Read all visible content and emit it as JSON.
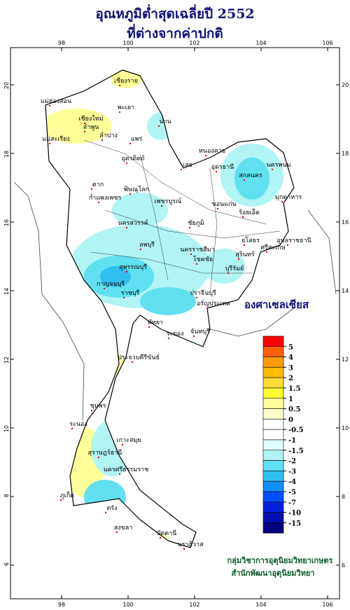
{
  "header": {
    "title_lines": [
      "อุณหภูมิต่ำสุดเฉลี่ยปี  2552",
      "ที่ต่างจากค่าปกติ"
    ]
  },
  "map": {
    "longitude_ticks": [
      98,
      100,
      102,
      104,
      106
    ],
    "latitude_ticks": [
      20,
      18,
      16,
      14,
      12,
      10,
      8,
      6
    ],
    "place_labels": [
      "เชียงราย",
      "แม่ฮ่องสอน",
      "พะเยา",
      "เชียงใหม่",
      "ลำพูน",
      "น่าน",
      "ลำปาง",
      "แพร่",
      "แม่สะเรียง",
      "อุตรดิตถ์",
      "หนองคาย",
      "อุดรธานี",
      "สกลนคร",
      "นครพนม",
      "เลย",
      "ตาก",
      "พิษณุโลก",
      "กำแพงเพชร",
      "เพชรบูรณ์",
      "ขอนแก่น",
      "มุกดาหาร",
      "ร้อยเอ็ด",
      "นครสวรรค์",
      "ชัยภูมิ",
      "ลพบุรี",
      "ยโสธร",
      "อุบลราชธานี",
      "ศรีสะเกษ",
      "สุรินทร์",
      "นครราชสีมา",
      "โชคชัย",
      "บุรีรัมย์",
      "สุพรรณบุรี",
      "กาญจนบุรี",
      "ราชบุรี",
      "ปราจีนบุรี",
      "อรัญประเทศ",
      "พัทยา",
      "ระยอง",
      "จันทบุรี",
      "ประจวบคีรีขันธ์",
      "ชุมพร",
      "ระนอง",
      "เกาะสมุย",
      "สุราษฎร์ธานี",
      "ภูเก็ต",
      "นครศรีธรรมราช",
      "ตรัง",
      "สงขลา",
      "ปัตตานี",
      "นราธิวาส"
    ]
  },
  "legend": {
    "title": "องศาเซลเซียส",
    "levels": [
      5,
      4,
      3,
      2,
      1.5,
      1,
      0.5,
      0,
      -0.5,
      -1,
      -1.5,
      -2,
      -3,
      -4,
      -5,
      -7,
      -10,
      -15
    ],
    "colors": [
      "#ff0000",
      "#ff6000",
      "#ff9900",
      "#ffbb00",
      "#ffdd33",
      "#ffff33",
      "#ffff99",
      "#ffffcc",
      "#ffffff",
      "#ffffff",
      "#e0ffff",
      "#b0f4f4",
      "#60e0f0",
      "#30c0f0",
      "#1090ff",
      "#0050ff",
      "#0020e0",
      "#0010b0",
      "#000080"
    ]
  },
  "credits": [
    "กลุ่มวิชาการอุตุนิยมวิทยาเกษตร",
    "สำนักพัฒนาอุตุนิยมวิทยา"
  ]
}
